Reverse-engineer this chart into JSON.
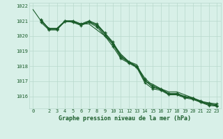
{
  "xlabel": "Graphe pression niveau de la mer (hPa)",
  "background_color": "#d8f0e8",
  "plot_bg_color": "#d8f0e8",
  "grid_color": "#b8d8cc",
  "line_color": "#1a5c2a",
  "ylim": [
    1015.2,
    1022.2
  ],
  "xlim": [
    -0.5,
    23.5
  ],
  "yticks": [
    1016,
    1017,
    1018,
    1019,
    1020,
    1021,
    1022
  ],
  "xticks": [
    0,
    2,
    3,
    4,
    5,
    6,
    7,
    8,
    9,
    10,
    11,
    12,
    13,
    14,
    15,
    16,
    17,
    18,
    19,
    20,
    21,
    22,
    23
  ],
  "series": [
    {
      "x": [
        0,
        1,
        2,
        3,
        4,
        5,
        6,
        7,
        8,
        9,
        10,
        11,
        12,
        13,
        14,
        15,
        16,
        17,
        18,
        19,
        20,
        21,
        22,
        23
      ],
      "y": [
        1021.75,
        1021.0,
        1020.5,
        1020.5,
        1021.0,
        1021.0,
        1020.8,
        1020.8,
        1020.4,
        1020.0,
        1019.5,
        1018.8,
        1018.3,
        1018.1,
        1017.0,
        1016.8,
        1016.5,
        1016.3,
        1016.3,
        1016.1,
        1015.9,
        1015.6,
        1015.5,
        1015.45
      ],
      "marker": false
    },
    {
      "x": [
        1,
        2,
        3,
        4,
        5,
        6,
        7,
        8,
        9,
        10,
        11,
        12,
        13,
        14,
        15,
        16,
        17,
        18,
        19,
        20,
        21,
        22,
        23
      ],
      "y": [
        1021.0,
        1020.5,
        1020.5,
        1021.0,
        1021.0,
        1020.8,
        1021.0,
        1020.8,
        1020.2,
        1019.6,
        1018.7,
        1018.3,
        1018.0,
        1017.2,
        1016.7,
        1016.5,
        1016.2,
        1016.2,
        1016.0,
        1015.9,
        1015.7,
        1015.5,
        1015.4
      ],
      "marker": true
    },
    {
      "x": [
        1,
        2,
        3,
        4,
        5,
        6,
        7,
        8,
        9,
        10,
        11,
        12,
        13,
        14,
        15,
        16,
        17,
        18,
        19,
        20,
        21,
        22,
        23
      ],
      "y": [
        1020.9,
        1020.4,
        1020.4,
        1021.0,
        1020.9,
        1020.7,
        1020.9,
        1020.6,
        1020.0,
        1019.3,
        1018.5,
        1018.2,
        1017.9,
        1016.9,
        1016.5,
        1016.4,
        1016.1,
        1016.1,
        1015.9,
        1015.8,
        1015.6,
        1015.4,
        1015.35
      ],
      "marker": true
    },
    {
      "x": [
        1,
        2,
        3,
        4,
        5,
        6,
        7,
        8,
        9,
        10,
        11,
        12,
        13,
        14,
        15,
        16,
        17,
        18,
        19,
        20,
        21,
        22,
        23
      ],
      "y": [
        1021.05,
        1020.45,
        1020.45,
        1020.95,
        1020.95,
        1020.75,
        1020.95,
        1020.7,
        1020.1,
        1019.45,
        1018.6,
        1018.25,
        1017.95,
        1017.05,
        1016.6,
        1016.45,
        1016.15,
        1016.15,
        1015.95,
        1015.85,
        1015.65,
        1015.45,
        1015.4
      ],
      "marker": true
    },
    {
      "x": [
        1,
        2,
        3,
        4,
        5,
        6,
        7,
        8,
        9,
        10,
        11,
        12,
        13,
        14,
        15,
        16,
        17,
        18,
        19,
        20,
        21,
        22,
        23
      ],
      "y": [
        1021.1,
        1020.46,
        1020.46,
        1020.96,
        1020.96,
        1020.76,
        1020.96,
        1020.72,
        1020.2,
        1019.5,
        1018.62,
        1018.27,
        1017.97,
        1017.07,
        1016.62,
        1016.47,
        1016.17,
        1016.17,
        1015.97,
        1015.87,
        1015.67,
        1015.57,
        1015.5
      ],
      "marker": true
    }
  ]
}
